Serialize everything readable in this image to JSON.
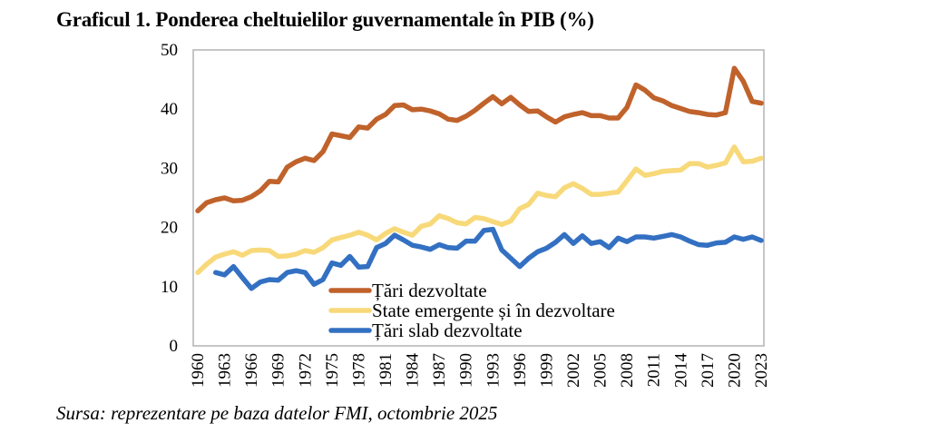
{
  "title": "Graficul 1. Ponderea cheltuielilor guvernamentale în PIB (%)",
  "source": "Sursa: reprezentare pe baza datelor FMI, octombrie 2025",
  "chart_data": {
    "type": "line",
    "title": "Graficul 1. Ponderea cheltuielilor guvernamentale în PIB (%)",
    "xlabel": "",
    "ylabel": "",
    "ylim": [
      0,
      50
    ],
    "yticks": [
      0,
      10,
      20,
      30,
      40,
      50
    ],
    "xlim": [
      1960,
      2023
    ],
    "xticks": [
      1960,
      1963,
      1966,
      1969,
      1972,
      1975,
      1978,
      1981,
      1984,
      1987,
      1990,
      1993,
      1996,
      1999,
      2002,
      2005,
      2008,
      2011,
      2014,
      2017,
      2020,
      2023
    ],
    "grid": false,
    "legend_position": "lower-center",
    "x": [
      1960,
      1961,
      1962,
      1963,
      1964,
      1965,
      1966,
      1967,
      1968,
      1969,
      1970,
      1971,
      1972,
      1973,
      1974,
      1975,
      1976,
      1977,
      1978,
      1979,
      1980,
      1981,
      1982,
      1983,
      1984,
      1985,
      1986,
      1987,
      1988,
      1989,
      1990,
      1991,
      1992,
      1993,
      1994,
      1995,
      1996,
      1997,
      1998,
      1999,
      2000,
      2001,
      2002,
      2003,
      2004,
      2005,
      2006,
      2007,
      2008,
      2009,
      2010,
      2011,
      2012,
      2013,
      2014,
      2015,
      2016,
      2017,
      2018,
      2019,
      2020,
      2021,
      2022,
      2023
    ],
    "series": [
      {
        "name": "Țări dezvoltate",
        "color": "#C0622B",
        "values": [
          22.8,
          24.2,
          24.7,
          25.0,
          24.5,
          24.6,
          25.2,
          26.2,
          27.8,
          27.7,
          30.2,
          31.1,
          31.7,
          31.3,
          32.8,
          35.8,
          35.5,
          35.2,
          37.0,
          36.8,
          38.3,
          39.1,
          40.6,
          40.7,
          39.9,
          40.0,
          39.7,
          39.2,
          38.3,
          38.1,
          38.8,
          39.8,
          41.0,
          42.1,
          40.9,
          42.0,
          40.7,
          39.6,
          39.7,
          38.7,
          37.8,
          38.7,
          39.1,
          39.4,
          38.9,
          38.9,
          38.5,
          38.5,
          40.3,
          44.1,
          43.2,
          41.9,
          41.4,
          40.6,
          40.1,
          39.6,
          39.4,
          39.1,
          39.0,
          39.4,
          46.9,
          44.7,
          41.3,
          41.0
        ]
      },
      {
        "name": "State emergente și în dezvoltare",
        "color": "#F8D97A",
        "values": [
          12.4,
          13.8,
          15.0,
          15.5,
          15.9,
          15.3,
          16.1,
          16.2,
          16.1,
          15.1,
          15.2,
          15.5,
          16.1,
          15.8,
          16.6,
          17.9,
          18.3,
          18.7,
          19.2,
          18.7,
          17.9,
          19.0,
          19.8,
          19.2,
          18.7,
          20.2,
          20.6,
          22.0,
          21.5,
          20.8,
          20.6,
          21.7,
          21.5,
          21.0,
          20.5,
          21.1,
          23.2,
          23.9,
          25.8,
          25.4,
          25.2,
          26.7,
          27.4,
          26.6,
          25.6,
          25.6,
          25.8,
          26.0,
          27.9,
          29.9,
          28.8,
          29.1,
          29.5,
          29.6,
          29.7,
          30.8,
          30.8,
          30.2,
          30.5,
          30.9,
          33.6,
          31.1,
          31.2,
          31.7
        ]
      },
      {
        "name": "Țări slab dezvoltate",
        "color": "#3370C2",
        "values": [
          null,
          null,
          12.4,
          12.0,
          13.4,
          11.5,
          9.7,
          10.8,
          11.2,
          11.1,
          12.4,
          12.7,
          12.4,
          10.4,
          11.2,
          14.0,
          13.6,
          15.1,
          13.3,
          13.4,
          16.6,
          17.3,
          18.7,
          17.9,
          17.0,
          16.7,
          16.3,
          17.1,
          16.6,
          16.5,
          17.7,
          17.7,
          19.5,
          19.7,
          16.2,
          14.8,
          13.4,
          14.8,
          15.9,
          16.5,
          17.5,
          18.8,
          17.3,
          18.6,
          17.3,
          17.6,
          16.6,
          18.2,
          17.6,
          18.4,
          18.4,
          18.2,
          18.5,
          18.8,
          18.4,
          17.7,
          17.1,
          17.0,
          17.4,
          17.5,
          18.4,
          18.0,
          18.4,
          17.8
        ]
      }
    ]
  }
}
